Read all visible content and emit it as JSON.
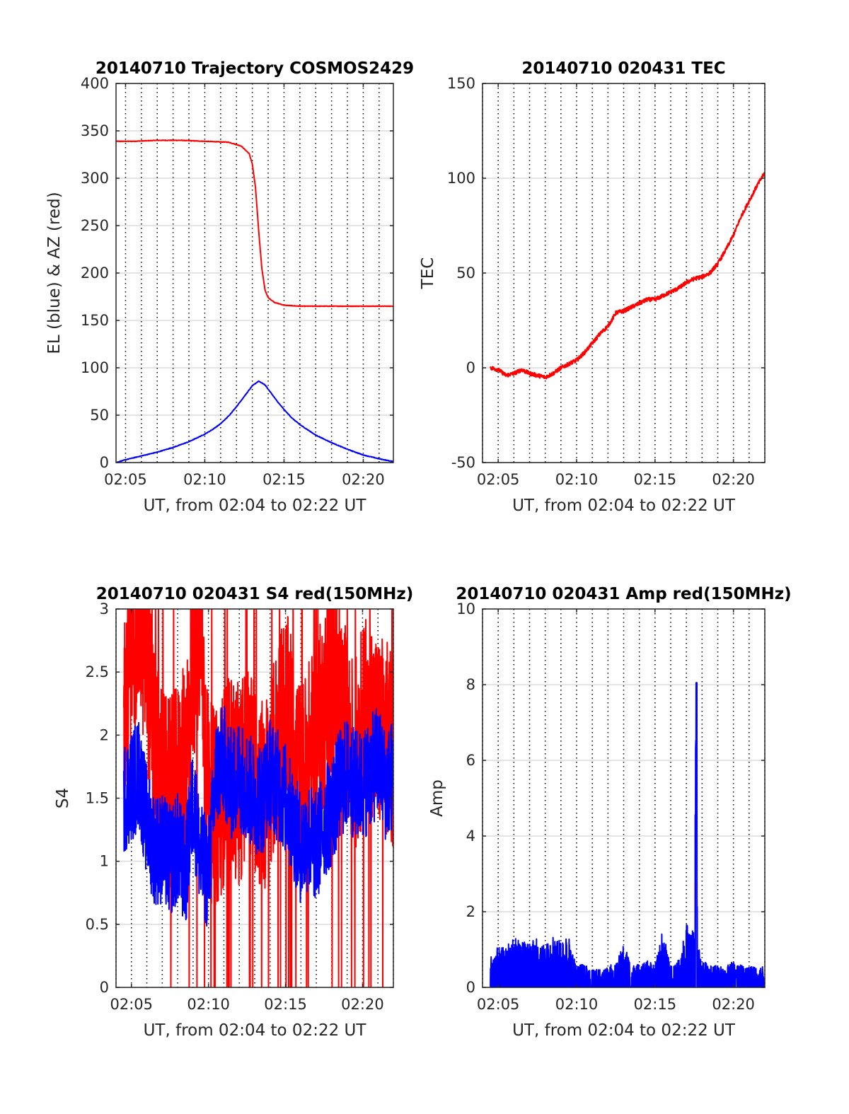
{
  "chart_data": [
    {
      "type": "line",
      "title": "20140710 Trajectory COSMOS2429",
      "xlabel": "UT, from 02:04 to 02:22 UT",
      "ylabel": "EL (blue) & AZ (red)",
      "xlim": [
        4.4,
        21.9
      ],
      "ylim": [
        0,
        400
      ],
      "xticks": [
        5,
        10,
        15,
        20
      ],
      "xtick_labels": [
        "02:05",
        "02:10",
        "02:15",
        "02:20"
      ],
      "yticks": [
        0,
        50,
        100,
        150,
        200,
        250,
        300,
        350,
        400
      ],
      "ytick_labels": [
        "0",
        "50",
        "100",
        "150",
        "200",
        "250",
        "300",
        "350",
        "400"
      ],
      "grid": "dotted vertical every minute, light horizontal",
      "series": [
        {
          "color": "#ff0000",
          "x": [
            4.4,
            5.5,
            7.0,
            8.5,
            10.0,
            11.5,
            12.3,
            12.8,
            13.0,
            13.2,
            13.4,
            13.6,
            13.8,
            14.0,
            14.4,
            15.0,
            16.0,
            17.5,
            19.0,
            21.9
          ],
          "y": [
            339,
            339,
            340,
            340,
            339,
            338,
            334,
            326,
            315,
            290,
            245,
            205,
            182,
            174,
            169,
            166,
            165,
            165,
            165,
            165
          ]
        },
        {
          "color": "#0000ff",
          "x": [
            4.4,
            5.0,
            6.0,
            7.0,
            8.0,
            9.0,
            10.0,
            10.5,
            11.0,
            11.5,
            12.0,
            12.5,
            13.0,
            13.4,
            13.8,
            14.2,
            14.6,
            15.0,
            15.5,
            16.0,
            17.0,
            18.0,
            19.0,
            20.0,
            21.0,
            21.9
          ],
          "y": [
            0,
            3,
            7,
            11,
            16,
            22,
            30,
            35,
            41,
            49,
            59,
            70,
            81,
            86,
            82,
            73,
            64,
            56,
            47,
            40,
            29,
            21,
            14,
            8,
            4,
            1
          ]
        }
      ]
    },
    {
      "type": "line",
      "title": "20140710 020431 TEC",
      "xlabel": "UT, from 02:04 to 02:22 UT",
      "ylabel": "TEC",
      "xlim": [
        4.0,
        22.0
      ],
      "ylim": [
        -50,
        150
      ],
      "xticks": [
        5,
        10,
        15,
        20
      ],
      "xtick_labels": [
        "02:05",
        "02:10",
        "02:15",
        "02:20"
      ],
      "yticks": [
        -50,
        0,
        50,
        100,
        150
      ],
      "ytick_labels": [
        "-50",
        "0",
        "50",
        "100",
        "150"
      ],
      "grid": "dotted vertical every minute, light horizontal",
      "series": [
        {
          "color": "#ff0000",
          "x": [
            4.5,
            5.0,
            5.5,
            6.0,
            6.5,
            7.0,
            7.5,
            8.0,
            8.5,
            9.0,
            9.5,
            10.0,
            10.5,
            11.0,
            11.5,
            12.0,
            12.3,
            12.5,
            13.0,
            13.5,
            14.0,
            14.5,
            15.0,
            15.5,
            16.0,
            16.5,
            17.0,
            17.5,
            18.0,
            18.5,
            19.0,
            19.5,
            20.0,
            20.5,
            21.0,
            21.5,
            22.0
          ],
          "y": [
            0,
            -1,
            -4,
            -3,
            -1,
            -3,
            -4,
            -5,
            -3,
            0,
            2,
            4,
            8,
            13,
            18,
            22,
            26,
            29,
            30,
            32,
            34,
            36,
            36,
            38,
            40,
            42,
            45,
            47,
            48,
            50,
            55,
            62,
            70,
            80,
            88,
            96,
            103
          ]
        }
      ]
    },
    {
      "type": "line",
      "title": "20140710 020431 S4 red(150MHz)",
      "xlabel": "UT, from 02:04 to 02:22 UT",
      "ylabel": "S4",
      "xlim": [
        4.0,
        22.0
      ],
      "ylim": [
        0,
        3
      ],
      "xticks": [
        5,
        10,
        15,
        20
      ],
      "xtick_labels": [
        "02:05",
        "02:10",
        "02:15",
        "02:20"
      ],
      "yticks": [
        0,
        0.5,
        1,
        1.5,
        2,
        2.5,
        3
      ],
      "ytick_labels": [
        "0",
        "0.5",
        "1",
        "1.5",
        "2",
        "2.5",
        "3"
      ],
      "grid": "dotted vertical every minute, light horizontal",
      "series": [
        {
          "color": "#ff0000",
          "x": [
            4.5,
            5.0,
            5.5,
            6.0,
            6.5,
            7.0,
            7.5,
            8.0,
            8.5,
            9.0,
            9.5,
            10.0,
            10.5,
            11.0,
            11.5,
            12.0,
            12.5,
            13.0,
            13.5,
            14.0,
            14.5,
            15.0,
            15.5,
            16.0,
            16.5,
            17.0,
            17.5,
            18.0,
            18.5,
            19.0,
            19.5,
            20.0,
            20.5,
            21.0,
            21.5,
            22.0
          ],
          "y": [
            2.2,
            2.8,
            2.9,
            2.6,
            1.8,
            1.6,
            1.5,
            1.6,
            1.8,
            2.6,
            2.8,
            1.5,
            1.4,
            1.6,
            1.7,
            1.6,
            1.8,
            1.7,
            1.5,
            1.6,
            2.0,
            2.2,
            2.0,
            1.6,
            1.8,
            2.0,
            2.2,
            2.4,
            2.3,
            2.0,
            1.8,
            2.1,
            2.2,
            2.0,
            2.0,
            1.8
          ]
        },
        {
          "color": "#0000ff",
          "x": [
            4.5,
            5.0,
            5.5,
            6.0,
            6.5,
            7.0,
            7.5,
            8.0,
            8.5,
            9.0,
            9.5,
            10.0,
            10.5,
            11.0,
            11.5,
            12.0,
            12.5,
            13.0,
            13.5,
            14.0,
            14.5,
            15.0,
            15.5,
            16.0,
            16.5,
            17.0,
            17.5,
            18.0,
            18.5,
            19.0,
            19.5,
            20.0,
            20.5,
            21.0,
            21.5,
            22.0
          ],
          "y": [
            1.5,
            1.6,
            1.7,
            1.3,
            1.1,
            1.1,
            1.0,
            1.1,
            0.9,
            1.5,
            1.0,
            0.9,
            1.7,
            1.8,
            1.6,
            1.7,
            1.6,
            1.5,
            1.5,
            1.7,
            1.6,
            1.5,
            1.3,
            1.1,
            1.2,
            1.1,
            1.3,
            1.4,
            1.6,
            1.7,
            1.6,
            1.6,
            1.7,
            1.8,
            1.6,
            1.7
          ]
        }
      ]
    },
    {
      "type": "line",
      "title": "20140710 020431 Amp red(150MHz)",
      "xlabel": "UT, from 02:04 to 02:22 UT",
      "ylabel": "Amp",
      "xlim": [
        4.0,
        22.0
      ],
      "ylim": [
        0,
        10
      ],
      "xticks": [
        5,
        10,
        15,
        20
      ],
      "xtick_labels": [
        "02:05",
        "02:10",
        "02:15",
        "02:20"
      ],
      "yticks": [
        0,
        2,
        4,
        6,
        8,
        10
      ],
      "ytick_labels": [
        "0",
        "2",
        "4",
        "6",
        "8",
        "10"
      ],
      "grid": "dotted vertical every minute, light horizontal",
      "series": [
        {
          "color": "#0000ff",
          "x": [
            4.5,
            5.0,
            5.5,
            6.0,
            6.5,
            7.0,
            7.5,
            8.0,
            8.5,
            9.0,
            9.5,
            10.0,
            10.5,
            11.0,
            11.5,
            12.0,
            12.5,
            13.0,
            13.5,
            14.0,
            14.5,
            15.0,
            15.5,
            16.0,
            16.5,
            17.0,
            17.5,
            17.65,
            17.7,
            18.0,
            18.5,
            19.0,
            19.5,
            20.0,
            20.5,
            21.0,
            21.5,
            22.0
          ],
          "y": [
            0.7,
            0.9,
            0.9,
            1.1,
            1.0,
            1.0,
            1.1,
            0.9,
            1.2,
            1.0,
            1.1,
            0.5,
            0.5,
            0.4,
            0.4,
            0.5,
            0.5,
            1.0,
            0.5,
            0.5,
            0.6,
            0.5,
            1.3,
            0.5,
            0.6,
            1.4,
            1.3,
            8.0,
            1.0,
            0.6,
            0.5,
            0.5,
            0.5,
            0.6,
            0.5,
            0.5,
            0.5,
            0.5
          ]
        }
      ]
    }
  ]
}
